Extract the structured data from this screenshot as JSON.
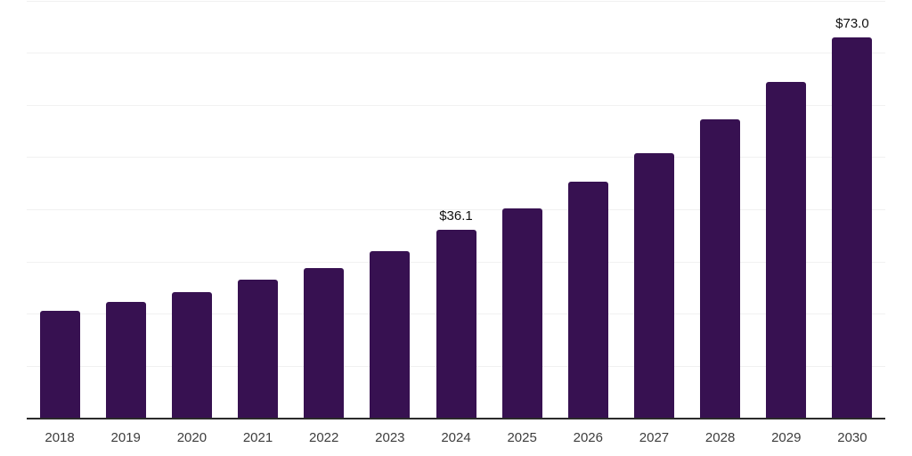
{
  "chart_data": {
    "type": "bar",
    "title": "",
    "xlabel": "",
    "ylabel": "",
    "categories": [
      "2018",
      "2019",
      "2020",
      "2021",
      "2022",
      "2023",
      "2024",
      "2025",
      "2026",
      "2027",
      "2028",
      "2029",
      "2030"
    ],
    "values": [
      20.6,
      22.3,
      24.2,
      26.6,
      28.8,
      32.1,
      36.1,
      40.3,
      45.4,
      50.8,
      57.3,
      64.5,
      73.0
    ],
    "data_labels": [
      null,
      null,
      null,
      null,
      null,
      null,
      "$36.1",
      null,
      null,
      null,
      null,
      null,
      "$73.0"
    ],
    "ylim": [
      0,
      80
    ],
    "gridline_step": 10,
    "grid": true,
    "legend": false,
    "y_tick_labels_visible": false,
    "colors": {
      "bar": "#371151",
      "gridline": "#f1f1f1",
      "axis_line": "#2b2b2b",
      "tick_label": "#3d3d3d",
      "value_label": "#111111",
      "background": "#ffffff"
    }
  }
}
